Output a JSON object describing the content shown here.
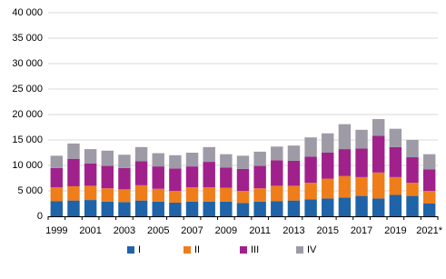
{
  "chart_data": {
    "type": "stacked_bar",
    "categories": [
      "1999",
      null,
      "2001",
      null,
      "2003",
      null,
      "2005",
      null,
      "2007",
      null,
      "2009",
      null,
      "2011",
      null,
      "2013",
      null,
      "2015",
      null,
      "2017",
      null,
      "2019",
      null,
      "2021*"
    ],
    "series": [
      {
        "name": "I",
        "color": "#1f63a8",
        "values": [
          3000,
          3100,
          3200,
          2900,
          2800,
          3100,
          2900,
          2700,
          2900,
          2900,
          2900,
          2600,
          2900,
          3000,
          3100,
          3300,
          3500,
          3700,
          4000,
          3500,
          4200,
          4000,
          2500
        ]
      },
      {
        "name": "II",
        "color": "#ef7d1a",
        "values": [
          2700,
          2800,
          2800,
          2600,
          2500,
          3000,
          2500,
          2300,
          2800,
          2800,
          2700,
          2400,
          2600,
          3000,
          2900,
          3300,
          3900,
          4200,
          3700,
          5100,
          3500,
          2600,
          2500
        ]
      },
      {
        "name": "III",
        "color": "#a0218c",
        "values": [
          3800,
          5400,
          4400,
          4400,
          4200,
          4700,
          4400,
          4400,
          4100,
          5000,
          4000,
          4300,
          4400,
          5000,
          4900,
          5100,
          5100,
          5300,
          5600,
          7200,
          5900,
          5000,
          4200
        ]
      },
      {
        "name": "IV",
        "color": "#9e9ba6",
        "values": [
          2400,
          3000,
          2800,
          3000,
          2600,
          2800,
          2600,
          2600,
          2700,
          2900,
          2600,
          2600,
          2800,
          2700,
          3000,
          3800,
          3800,
          4900,
          3700,
          3300,
          3600,
          3400,
          3000
        ]
      }
    ],
    "ylim": [
      0,
      40000
    ],
    "yticks": [
      0,
      {
        "value": 5000,
        "label": "5 000"
      },
      {
        "value": 10000,
        "label": "10 000"
      },
      {
        "value": 15000,
        "label": "15 000"
      },
      {
        "value": 20000,
        "label": "20 000"
      },
      {
        "value": 25000,
        "label": "25 000"
      },
      {
        "value": 30000,
        "label": "30 000"
      },
      {
        "value": 35000,
        "label": "35 000"
      },
      {
        "value": 40000,
        "label": "40 000"
      }
    ],
    "grid": true,
    "legend": "bottom"
  }
}
